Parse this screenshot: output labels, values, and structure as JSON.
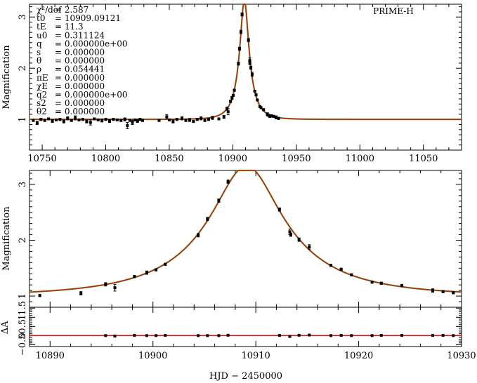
{
  "colors": {
    "model_red": "#dd1111",
    "model_green": "#33aa22",
    "data_black": "#000000"
  },
  "chart_data": [
    {
      "type": "scatter",
      "panel": "full-lightcurve",
      "title": "PRIME-H",
      "xlabel": "",
      "ylabel": "Magnification",
      "xlim": [
        10740,
        11080
      ],
      "ylim": [
        0.4,
        3.25
      ],
      "x_ticks": [
        10750,
        10800,
        10850,
        10900,
        10950,
        11000,
        11050
      ],
      "y_ticks": [
        1,
        2,
        3
      ],
      "params": [
        {
          "name": "χ²/dof",
          "value": "= 2.587"
        },
        {
          "name": "t0",
          "value": "= 10909.09121"
        },
        {
          "name": "tE",
          "value": "= 11.3"
        },
        {
          "name": "u0",
          "value": "= 0.311124"
        },
        {
          "name": "q",
          "value": "= 0.000000e+00"
        },
        {
          "name": "s",
          "value": "= 0.000000"
        },
        {
          "name": "θ",
          "value": "= 0.000000"
        },
        {
          "name": "ρ",
          "value": "= 0.054441"
        },
        {
          "name": "πE",
          "value": "= 0.000000"
        },
        {
          "name": "χE",
          "value": "= 0.000000"
        },
        {
          "name": "q2",
          "value": "= 0.000000e+00"
        },
        {
          "name": "s2",
          "value": "= 0.000000"
        },
        {
          "name": "θ2",
          "value": "= 0.000000"
        }
      ],
      "model": {
        "t0": 10909.09121,
        "tE": 11.3,
        "u0": 0.311124
      },
      "points": [
        [
          10743,
          0.98,
          0.02
        ],
        [
          10746,
          0.93,
          0.03
        ],
        [
          10749,
          1.0,
          0.02
        ],
        [
          10752,
          0.98,
          0.02
        ],
        [
          10755,
          1.01,
          0.02
        ],
        [
          10758,
          0.97,
          0.03
        ],
        [
          10761,
          0.99,
          0.02
        ],
        [
          10764,
          1.0,
          0.02
        ],
        [
          10767,
          0.96,
          0.03
        ],
        [
          10770,
          1.02,
          0.03
        ],
        [
          10773,
          0.98,
          0.02
        ],
        [
          10776,
          1.03,
          0.04
        ],
        [
          10779,
          0.99,
          0.02
        ],
        [
          10782,
          1.0,
          0.02
        ],
        [
          10785,
          0.96,
          0.03
        ],
        [
          10788,
          0.94,
          0.05
        ],
        [
          10791,
          1.01,
          0.02
        ],
        [
          10794,
          0.99,
          0.02
        ],
        [
          10797,
          0.98,
          0.03
        ],
        [
          10800,
          1.0,
          0.02
        ],
        [
          10803,
          0.97,
          0.03
        ],
        [
          10806,
          1.0,
          0.02
        ],
        [
          10809,
          0.99,
          0.02
        ],
        [
          10812,
          0.98,
          0.02
        ],
        [
          10815,
          1.0,
          0.03
        ],
        [
          10817,
          0.88,
          0.06
        ],
        [
          10819,
          0.98,
          0.02
        ],
        [
          10821,
          0.94,
          0.04
        ],
        [
          10823,
          0.99,
          0.02
        ],
        [
          10825,
          0.97,
          0.03
        ],
        [
          10827,
          1.0,
          0.02
        ],
        [
          10829,
          0.98,
          0.02
        ],
        [
          10842,
          0.98,
          0.02
        ],
        [
          10848,
          1.05,
          0.04
        ],
        [
          10850,
          0.99,
          0.02
        ],
        [
          10853,
          0.96,
          0.03
        ],
        [
          10856,
          1.0,
          0.02
        ],
        [
          10860,
          1.02,
          0.03
        ],
        [
          10863,
          0.98,
          0.02
        ],
        [
          10866,
          0.99,
          0.03
        ],
        [
          10869,
          0.96,
          0.02
        ],
        [
          10872,
          1.0,
          0.02
        ],
        [
          10875,
          1.02,
          0.03
        ],
        [
          10878,
          0.98,
          0.02
        ],
        [
          10881,
          1.0,
          0.02
        ],
        [
          10884,
          1.03,
          0.03
        ],
        [
          10889,
          1.01,
          0.02
        ],
        [
          10893,
          1.05,
          0.03
        ],
        [
          10895.4,
          1.21,
          0.03
        ],
        [
          10896.3,
          1.15,
          0.06
        ],
        [
          10898.2,
          1.35,
          0.02
        ],
        [
          10899.4,
          1.42,
          0.03
        ],
        [
          10900.3,
          1.47,
          0.02
        ],
        [
          10901.2,
          1.57,
          0.02
        ],
        [
          10904.4,
          2.09,
          0.03
        ],
        [
          10905.3,
          2.38,
          0.03
        ],
        [
          10906.4,
          2.71,
          0.03
        ],
        [
          10907.3,
          3.05,
          0.03
        ],
        [
          10912.3,
          2.55,
          0.03
        ],
        [
          10913.3,
          2.15,
          0.05
        ],
        [
          10913.4,
          2.1,
          0.03
        ],
        [
          10914.2,
          2.01,
          0.03
        ],
        [
          10915.2,
          1.88,
          0.04
        ],
        [
          10917.3,
          1.55,
          0.02
        ],
        [
          10918.3,
          1.48,
          0.02
        ],
        [
          10919.3,
          1.38,
          0.02
        ],
        [
          10921.3,
          1.25,
          0.02
        ],
        [
          10922.2,
          1.23,
          0.02
        ],
        [
          10924.2,
          1.19,
          0.02
        ],
        [
          10927.2,
          1.1,
          0.03
        ],
        [
          10928.2,
          1.08,
          0.02
        ],
        [
          10929.2,
          1.06,
          0.02
        ],
        [
          10930.5,
          1.07,
          0.02
        ],
        [
          10932,
          1.06,
          0.02
        ],
        [
          10934,
          1.04,
          0.03
        ],
        [
          10936,
          1.02,
          0.02
        ]
      ]
    },
    {
      "type": "scatter",
      "panel": "zoom",
      "xlabel": "",
      "ylabel": "Magnification",
      "xlim": [
        10888,
        10930
      ],
      "ylim": [
        0.8,
        3.25
      ],
      "y_ticks": [
        1,
        2,
        3
      ],
      "note": "same data and model as full-lightcurve, zoomed"
    },
    {
      "type": "scatter",
      "panel": "residuals",
      "xlabel": "HJD − 2450000",
      "ylabel": "ΔA",
      "xlim": [
        10888,
        10930
      ],
      "ylim": [
        -0.6,
        1.55
      ],
      "x_ticks": [
        10890,
        10900,
        10910,
        10920,
        10930
      ],
      "y_tick_labels": [
        "1.5",
        "1",
        "0.5",
        "0",
        "−0.5"
      ],
      "y_ticks": [
        1.5,
        1,
        0.5,
        0,
        -0.5
      ],
      "residuals": [
        [
          10895.4,
          0.0
        ],
        [
          10896.3,
          -0.03
        ],
        [
          10898.2,
          0.01
        ],
        [
          10899.4,
          0.0
        ],
        [
          10900.3,
          0.0
        ],
        [
          10901.2,
          0.01
        ],
        [
          10904.4,
          0.0
        ],
        [
          10905.3,
          0.0
        ],
        [
          10906.4,
          0.0
        ],
        [
          10907.3,
          0.02
        ],
        [
          10912.3,
          0.01
        ],
        [
          10913.3,
          -0.05
        ],
        [
          10914.2,
          0.02
        ],
        [
          10915.2,
          0.03
        ],
        [
          10917.3,
          0.0
        ],
        [
          10918.3,
          0.01
        ],
        [
          10919.3,
          0.0
        ],
        [
          10921.3,
          0.0
        ],
        [
          10922.2,
          0.01
        ],
        [
          10924.2,
          0.01
        ],
        [
          10927.2,
          0.01
        ],
        [
          10928.2,
          0.01
        ],
        [
          10929.2,
          0.0
        ]
      ]
    }
  ]
}
